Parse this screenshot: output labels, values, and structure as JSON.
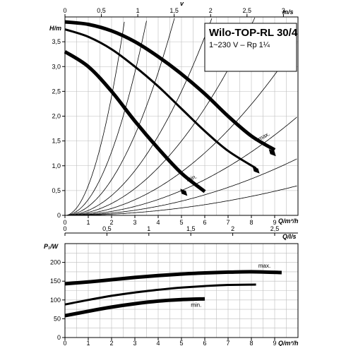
{
  "chart_data": [
    {
      "type": "line",
      "title": "Wilo-TOP-RL 30/4",
      "subtitle": "1~230 V – Rp 1¼",
      "xlabel": "Q/m³/h",
      "ylabel": "H/m",
      "secondary_xlabel_top": "v",
      "secondary_xunit_top": "m/s",
      "secondary_xlabel_bottom": "Q/l/s",
      "xlim": [
        0,
        10
      ],
      "ylim": [
        0,
        4
      ],
      "x_ticks": [
        "0",
        "1",
        "2",
        "3",
        "4",
        "5",
        "6",
        "7",
        "8",
        "9"
      ],
      "y_ticks": [
        "0",
        "0,5",
        "1,0",
        "1,5",
        "2,0",
        "2,5",
        "3,0",
        "3,5"
      ],
      "top_ticks": [
        "0",
        "0,5",
        "1",
        "1,5",
        "2",
        "2,5",
        "3"
      ],
      "top_ticks_values": [
        0,
        0.5,
        1,
        1.5,
        2,
        2.5,
        3
      ],
      "bottom_ls_ticks": [
        "0",
        "0,5",
        "1",
        "1,5",
        "2",
        "2,5"
      ],
      "bottom_ls_values": [
        0,
        0.5,
        1,
        1.5,
        2,
        2.5
      ],
      "grid": true,
      "series": [
        {
          "name": "max.",
          "x": [
            0,
            1,
            2,
            3,
            4,
            5,
            6,
            7,
            8,
            9
          ],
          "y": [
            3.9,
            3.85,
            3.72,
            3.5,
            3.2,
            2.85,
            2.45,
            2.0,
            1.6,
            1.32
          ]
        },
        {
          "name": "",
          "x": [
            0,
            1,
            2,
            3,
            4,
            5,
            6,
            7,
            8.2
          ],
          "y": [
            3.75,
            3.6,
            3.35,
            3.0,
            2.6,
            2.15,
            1.7,
            1.3,
            0.95
          ]
        },
        {
          "name": "min.",
          "x": [
            0,
            1,
            2,
            3,
            4,
            5,
            6
          ],
          "y": [
            3.3,
            3.0,
            2.5,
            1.9,
            1.35,
            0.85,
            0.48
          ]
        }
      ],
      "system_curve_coefficients": [
        0.6,
        0.32,
        0.18,
        0.1,
        0.06,
        0.035,
        0.02,
        0.0115,
        0.006
      ],
      "markers": [
        {
          "label": "max.",
          "x": 8.9,
          "y": 1.25
        },
        {
          "label": "",
          "x": 8.2,
          "y": 0.9
        },
        {
          "label": "min.",
          "x": 5.1,
          "y": 0.45
        }
      ]
    },
    {
      "type": "line",
      "xlabel": "Q/m³/h",
      "ylabel": "P₁/W",
      "secondary_xlabel_top": "Q/l/s",
      "xlim": [
        0,
        10
      ],
      "ylim": [
        0,
        250
      ],
      "x_ticks": [
        "0",
        "1",
        "2",
        "3",
        "4",
        "5",
        "6",
        "7",
        "8",
        "9"
      ],
      "y_ticks": [
        "0",
        "50",
        "100",
        "150",
        "200"
      ],
      "top_ticks": [
        "0",
        "0,5",
        "1",
        "1,5",
        "2",
        "2,5"
      ],
      "top_ticks_values": [
        0,
        0.5,
        1,
        1.5,
        2,
        2.5
      ],
      "grid": true,
      "series": [
        {
          "name": "max.",
          "x": [
            0,
            1,
            2,
            3,
            4,
            5,
            6,
            7,
            8,
            9.3
          ],
          "y": [
            143,
            148,
            154,
            160,
            165,
            169,
            172,
            174,
            175,
            173
          ]
        },
        {
          "name": "",
          "x": [
            0,
            1,
            2,
            3,
            4,
            5,
            6,
            7,
            8.2
          ],
          "y": [
            88,
            100,
            111,
            120,
            127,
            133,
            137,
            140,
            141
          ]
        },
        {
          "name": "min.",
          "x": [
            0,
            1,
            2,
            3,
            4,
            5,
            6
          ],
          "y": [
            58,
            70,
            81,
            90,
            97,
            101,
            103
          ]
        }
      ]
    }
  ]
}
